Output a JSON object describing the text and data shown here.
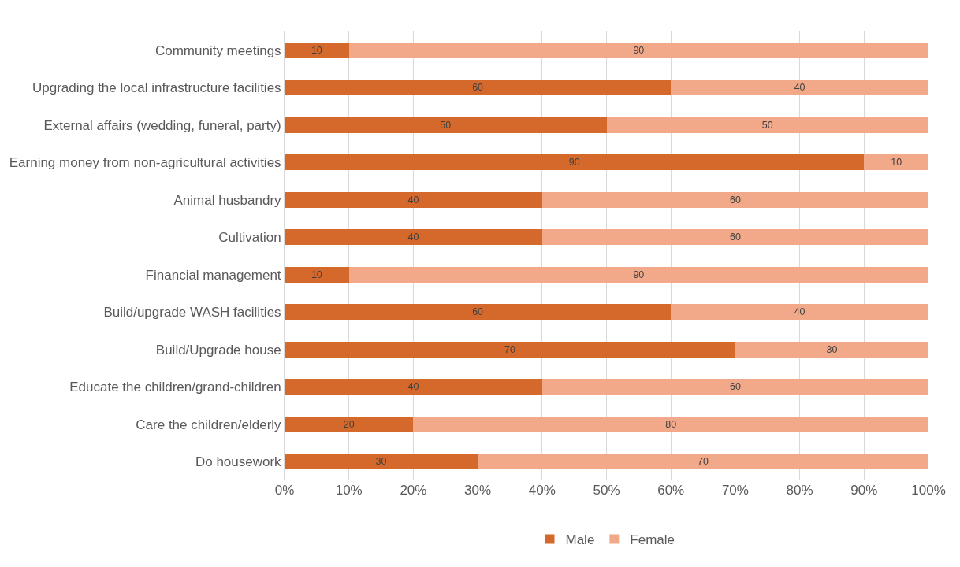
{
  "chart_data": {
    "type": "bar",
    "orientation": "horizontal",
    "stacked": true,
    "categories": [
      "Community meetings",
      "Upgrading the local infrastructure facilities",
      "External affairs (wedding, funeral, party)",
      "Earning money from non-agricultural activities",
      "Animal husbandry",
      "Cultivation",
      "Financial management",
      "Build/upgrade WASH facilities",
      "Build/Upgrade house",
      "Educate the children/grand-children",
      "Care the children/elderly",
      "Do housework"
    ],
    "series": [
      {
        "name": "Male",
        "color": "#d4692b",
        "values": [
          10,
          60,
          50,
          90,
          40,
          40,
          10,
          60,
          70,
          40,
          20,
          30
        ]
      },
      {
        "name": "Female",
        "color": "#f2a98a",
        "values": [
          90,
          40,
          50,
          10,
          60,
          60,
          90,
          40,
          30,
          60,
          80,
          70
        ]
      }
    ],
    "xlim": [
      0,
      100
    ],
    "xticks": [
      {
        "value": 0,
        "label": "0%"
      },
      {
        "value": 10,
        "label": "10%"
      },
      {
        "value": 20,
        "label": "20%"
      },
      {
        "value": 30,
        "label": "30%"
      },
      {
        "value": 40,
        "label": "40%"
      },
      {
        "value": 50,
        "label": "50%"
      },
      {
        "value": 60,
        "label": "60%"
      },
      {
        "value": 70,
        "label": "70%"
      },
      {
        "value": 80,
        "label": "80%"
      },
      {
        "value": 90,
        "label": "90%"
      },
      {
        "value": 100,
        "label": "100%"
      }
    ],
    "data_labels": true,
    "grid": "x",
    "legend": "bottom"
  }
}
